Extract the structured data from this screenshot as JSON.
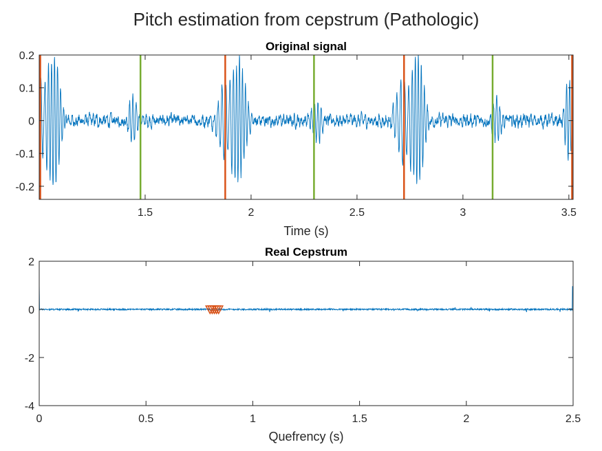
{
  "figure_title": "Pitch estimation from cepstrum (Pathologic)",
  "colors": {
    "signal": "#0072BD",
    "orange_marker": "#D95319",
    "green_marker": "#77AC30",
    "axis": "#262626",
    "background": "#ffffff"
  },
  "chart_data": [
    {
      "type": "line",
      "title": "Original signal",
      "xlabel": "Time (s)",
      "ylabel": "",
      "xlim": [
        1.0,
        3.52
      ],
      "ylim": [
        -0.24,
        0.2
      ],
      "xticks": [
        1.5,
        2,
        2.5,
        3,
        3.5
      ],
      "xtick_labels": [
        "1.5",
        "2",
        "2.5",
        "3",
        "3.5"
      ],
      "yticks": [
        0.2,
        0.1,
        0,
        -0.1,
        -0.2
      ],
      "ytick_labels": [
        "0.2",
        "0.1",
        "0",
        "-0.1",
        "-0.2"
      ],
      "grid": false,
      "period_markers_orange": [
        1.005,
        1.878,
        2.722,
        3.515
      ],
      "period_markers_green": [
        1.478,
        2.297,
        3.14
      ],
      "signal": {
        "cycle_starts": [
          1.005,
          1.878,
          2.722
        ],
        "cycle_length": 0.843,
        "burst_offset_a": 0.065,
        "burst_offset_b": 0.47
      }
    },
    {
      "type": "line",
      "title": "Real Cepstrum",
      "xlabel": "Quefrency (s)",
      "ylabel": "",
      "xlim": [
        0,
        2.5
      ],
      "ylim": [
        -4,
        2
      ],
      "xticks": [
        0,
        0.5,
        1,
        1.5,
        2,
        2.5
      ],
      "xtick_labels": [
        "0",
        "0.5",
        "1",
        "1.5",
        "2",
        "2.5"
      ],
      "yticks": [
        2,
        0,
        -2,
        -4
      ],
      "ytick_labels": [
        "2",
        "0",
        "-2",
        "-4"
      ],
      "grid": false,
      "cepstrum_peaks_quefrency": [
        0.8,
        0.81,
        0.82,
        0.83,
        0.84
      ]
    }
  ]
}
